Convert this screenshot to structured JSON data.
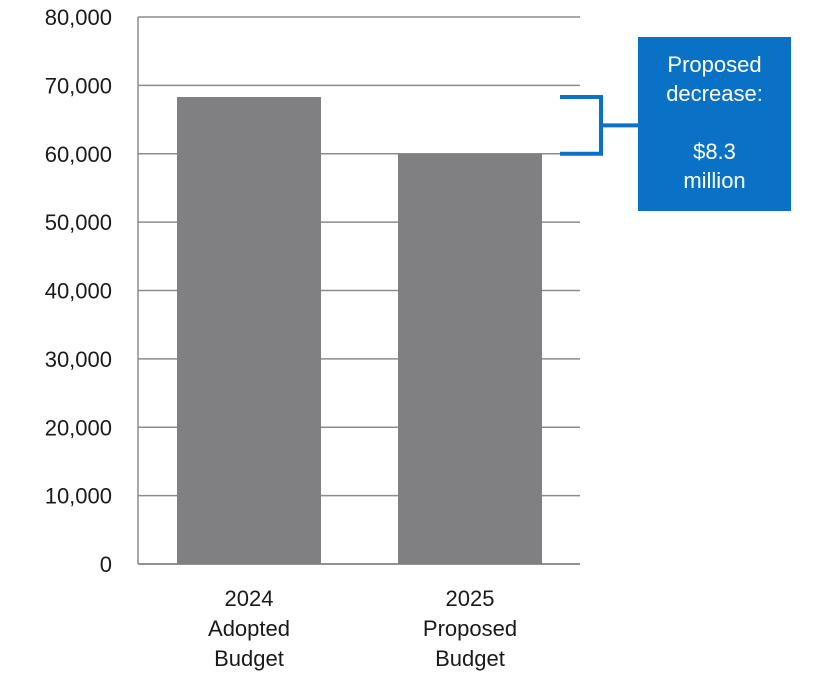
{
  "chart_data": {
    "type": "bar",
    "categories": [
      [
        "2024",
        "Adopted",
        "Budget"
      ],
      [
        "2025",
        "Proposed",
        "Budget"
      ]
    ],
    "values": [
      68300,
      60000
    ],
    "ylim": [
      0,
      80000
    ],
    "yticks": [
      "0",
      "10,000",
      "20,000",
      "30,000",
      "40,000",
      "50,000",
      "60,000",
      "70,000",
      "80,000"
    ],
    "grid": true,
    "bar_color": "#808083",
    "annotation": {
      "line1": "Proposed",
      "line2": "decrease:",
      "line3": "$8.3",
      "line4": "million",
      "color": "#0a72c6"
    }
  }
}
